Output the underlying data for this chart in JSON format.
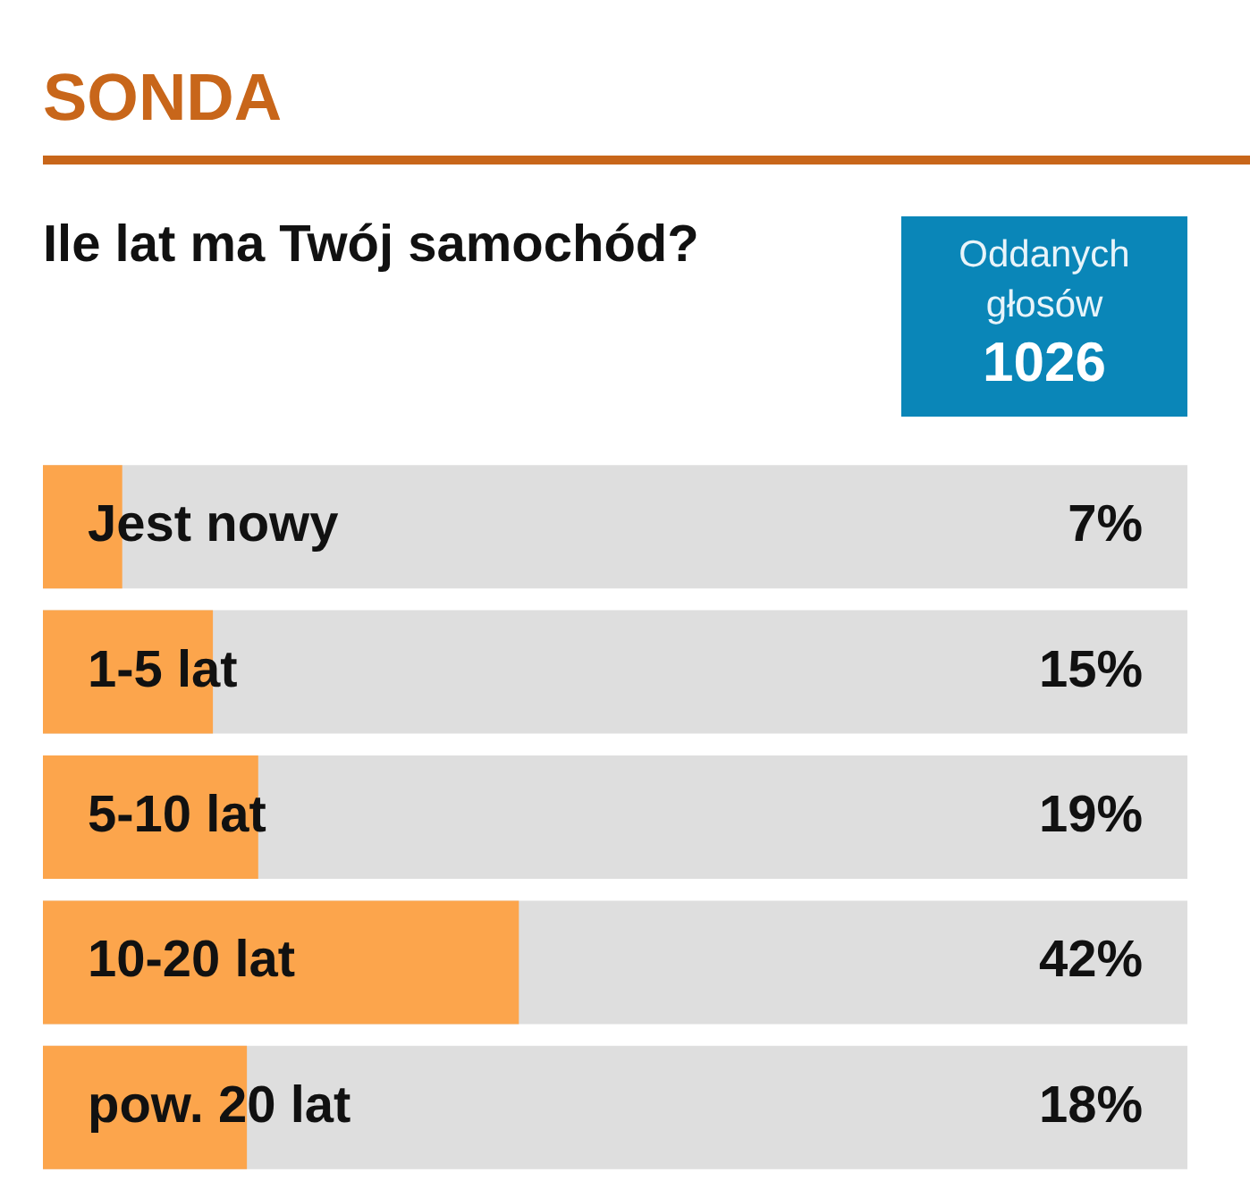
{
  "chart_data": {
    "type": "bar",
    "orientation": "horizontal",
    "title": "SONDA",
    "subtitle": "Ile lat ma Twój samochód?",
    "annotations": [
      "Oddanych głosów",
      "1026"
    ],
    "categories": [
      "Jest nowy",
      "1-5 lat",
      "5-10 lat",
      "10-20 lat",
      "pow. 20 lat"
    ],
    "values": [
      7,
      15,
      19,
      42,
      18
    ],
    "color": "#fca54c",
    "value_labels": [
      "7%",
      "15%",
      "19%",
      "42%",
      "18%"
    ],
    "legend": false,
    "tick_labels": false
  }
}
